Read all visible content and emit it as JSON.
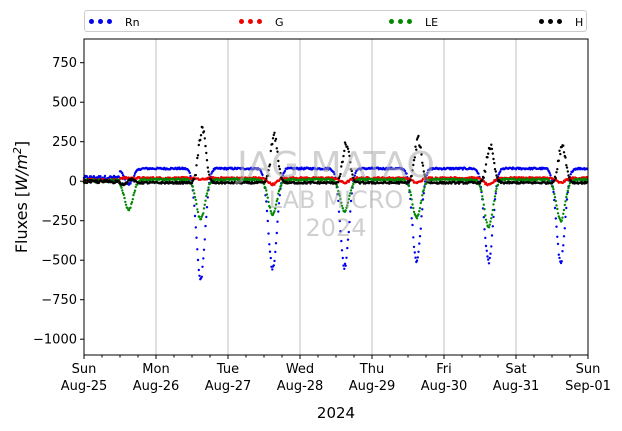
{
  "chart_data": {
    "type": "scatter",
    "title": "",
    "ylabel": "Fluxes [W/m²]",
    "ylabel_base": "Fluxes [",
    "ylabel_unit": "W/m",
    "ylabel_sup": "2",
    "ylabel_end": "]",
    "xlabel": "2024",
    "ylim": [
      -1100,
      900
    ],
    "yticks": [
      750,
      500,
      250,
      0,
      -250,
      -500,
      -750,
      -1000
    ],
    "xlim": [
      0,
      7
    ],
    "xticks": [
      {
        "day": "Sun",
        "date": "Aug-25"
      },
      {
        "day": "Mon",
        "date": "Aug-26"
      },
      {
        "day": "Tue",
        "date": "Aug-27"
      },
      {
        "day": "Wed",
        "date": "Aug-28"
      },
      {
        "day": "Thu",
        "date": "Aug-29"
      },
      {
        "day": "Fri",
        "date": "Aug-30"
      },
      {
        "day": "Sat",
        "date": "Aug-31"
      },
      {
        "day": "Sun",
        "date": "Sep-01"
      }
    ],
    "grid": "vertical",
    "legend_position": "top",
    "series": [
      {
        "name": "Rn",
        "color": "#0000ee",
        "daily_peak_negative": [
          -100,
          -700,
          -640,
          -620,
          -580,
          -590,
          -590
        ],
        "night_value": 80
      },
      {
        "name": "G",
        "color": "#ee0000",
        "daily_peak_negative": [
          0,
          -10,
          -40,
          -30,
          -30,
          -45,
          -30
        ],
        "night_value": 20
      },
      {
        "name": "LE",
        "color": "#008800",
        "daily_peak_negative": [
          -190,
          -250,
          -220,
          -200,
          -240,
          -300,
          -260
        ],
        "night_value": 10
      },
      {
        "name": "H",
        "color": "#000000",
        "daily_peak_positive": [
          60,
          380,
          320,
          280,
          290,
          250,
          260
        ],
        "daily_peak_negative": [
          -40,
          -30,
          -30,
          -40,
          -20,
          -20,
          -20
        ],
        "night_value": -10
      }
    ]
  },
  "watermark": {
    "line1": "JAG MATAQ",
    "line2": "LAB MICRO",
    "line3": "2024"
  }
}
